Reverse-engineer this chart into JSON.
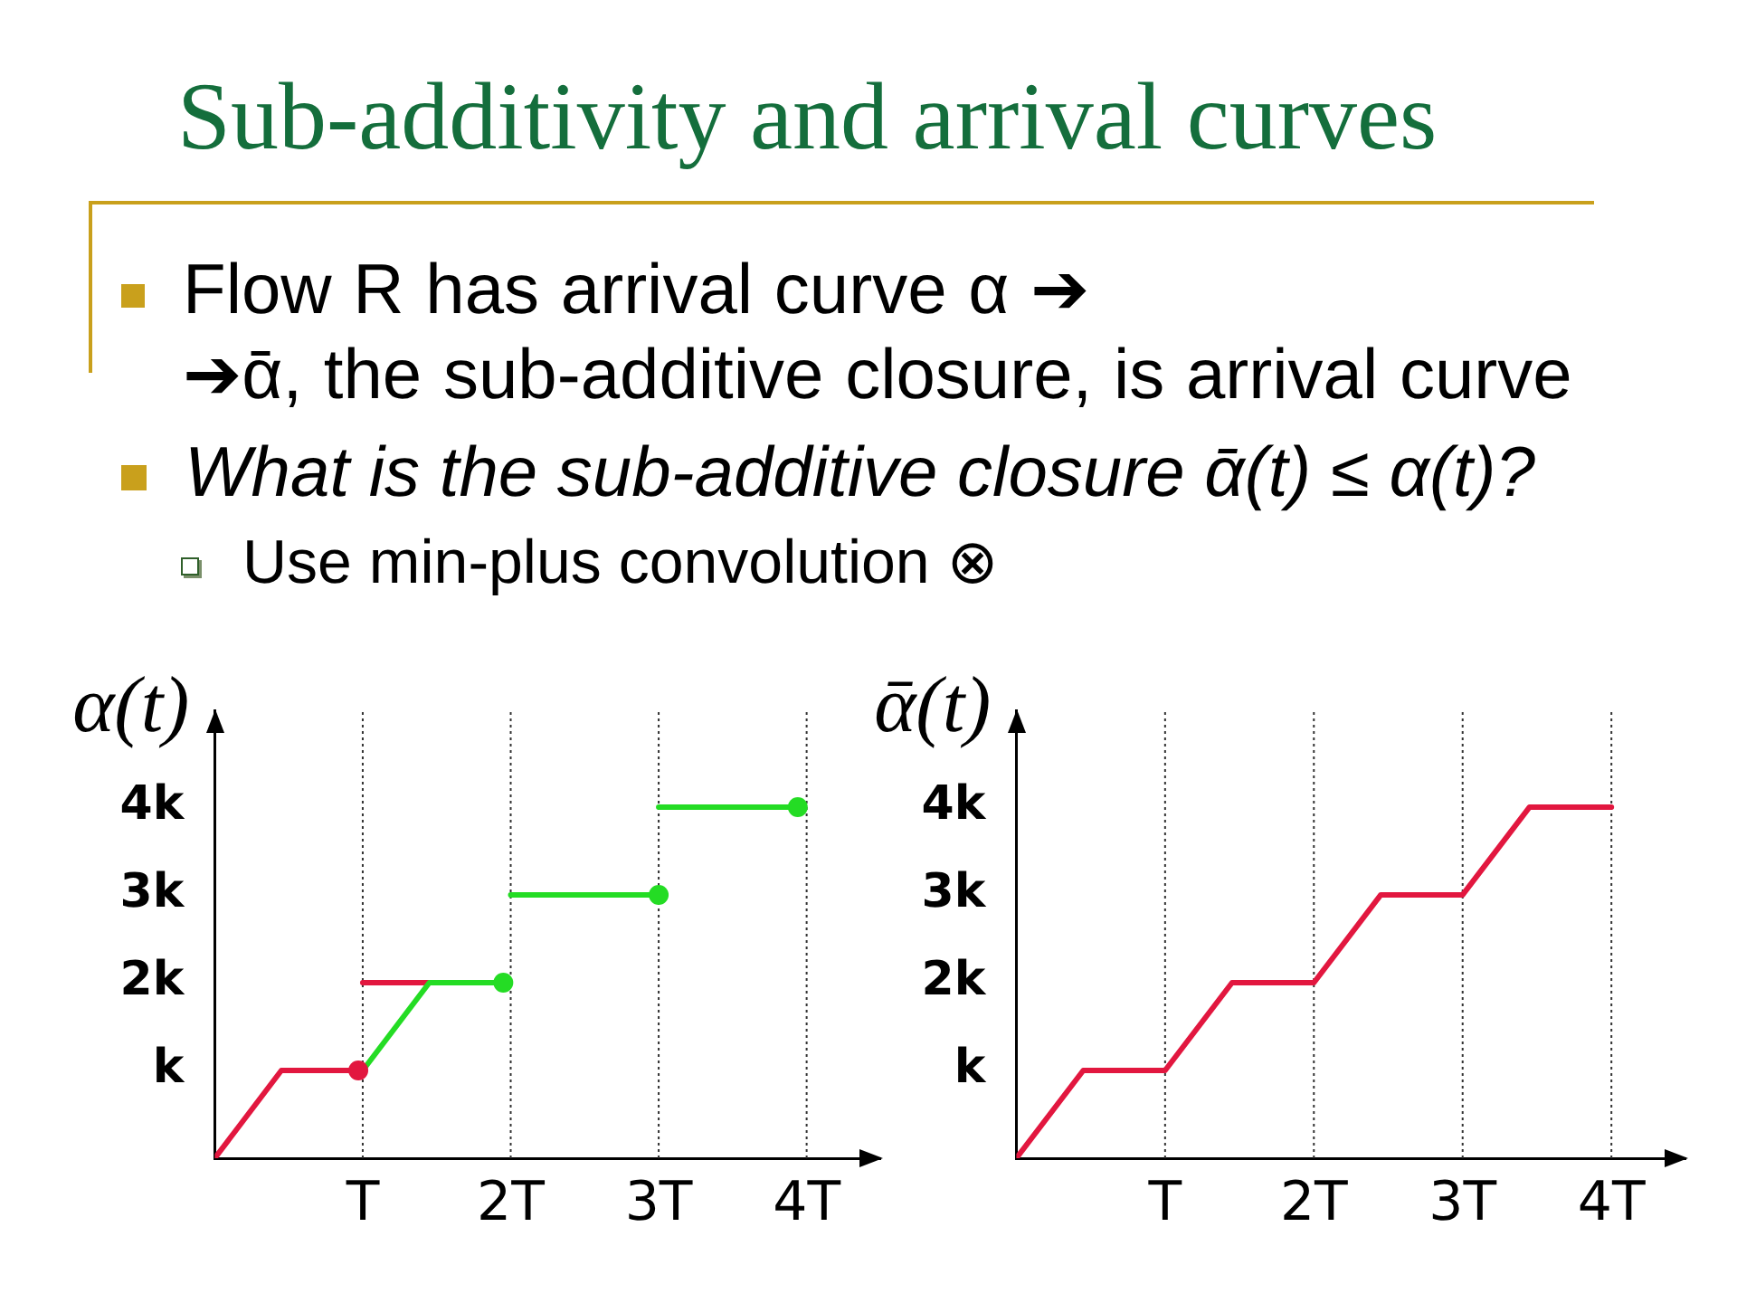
{
  "chart_data": [
    {
      "type": "other",
      "title": "Sub-additivity and arrival curves",
      "annotations": [
        "Flow R has arrival curve α ➔\n➔ᾱ, the sub-additive closure, is arrival curve",
        "What is the sub-additive closure ᾱ(t) ≤ α(t)?",
        "Use min-plus convolution ⊗"
      ]
    },
    {
      "type": "line",
      "ylabel": "α(t)",
      "xlim": [
        0,
        4.5
      ],
      "ylim": [
        0,
        5.1
      ],
      "xticks": [
        {
          "value": 1,
          "label": "T"
        },
        {
          "value": 2,
          "label": "2T"
        },
        {
          "value": 3,
          "label": "3T"
        },
        {
          "value": 4,
          "label": "4T"
        }
      ],
      "yticks": [
        {
          "value": 1,
          "label": "k"
        },
        {
          "value": 2,
          "label": "2k"
        },
        {
          "value": 3,
          "label": "3k"
        },
        {
          "value": 4,
          "label": "4k"
        }
      ],
      "grid": "x",
      "marker": "none",
      "series": [
        {
          "color": "#e2173f",
          "x": [
            0,
            0.45,
            0.97
          ],
          "values": [
            0,
            1,
            1
          ]
        },
        {
          "color": "#e2173f",
          "x": [
            1,
            1.45
          ],
          "values": [
            2,
            2
          ]
        },
        {
          "color": "#24dc24",
          "x": [
            1,
            1.45,
            1.95
          ],
          "values": [
            1,
            2,
            2
          ]
        },
        {
          "color": "#24dc24",
          "x": [
            2,
            3
          ],
          "values": [
            3,
            3
          ]
        },
        {
          "color": "#24dc24",
          "x": [
            3,
            3.94
          ],
          "values": [
            4,
            4
          ]
        },
        {
          "type": "scatter",
          "marker": "circle",
          "color": "#e2173f",
          "x": [
            0.97
          ],
          "values": [
            1
          ]
        },
        {
          "type": "scatter",
          "marker": "circle",
          "color": "#24dc24",
          "x": [
            1.95,
            3,
            3.94
          ],
          "values": [
            2,
            3,
            4
          ]
        }
      ]
    },
    {
      "type": "line",
      "ylabel": "ᾱ(t)",
      "xlim": [
        0,
        4.5
      ],
      "ylim": [
        0,
        5.1
      ],
      "xticks": [
        {
          "value": 1,
          "label": "T"
        },
        {
          "value": 2,
          "label": "2T"
        },
        {
          "value": 3,
          "label": "3T"
        },
        {
          "value": 4,
          "label": "4T"
        }
      ],
      "yticks": [
        {
          "value": 1,
          "label": "k"
        },
        {
          "value": 2,
          "label": "2k"
        },
        {
          "value": 3,
          "label": "3k"
        },
        {
          "value": 4,
          "label": "4k"
        }
      ],
      "grid": "x",
      "marker": "none",
      "series": [
        {
          "color": "#e2173f",
          "x": [
            0,
            0.45,
            1,
            1.45,
            2,
            2.45,
            3,
            3.45,
            4
          ],
          "values": [
            0,
            1,
            1,
            2,
            2,
            3,
            3,
            4,
            4
          ]
        }
      ]
    }
  ]
}
